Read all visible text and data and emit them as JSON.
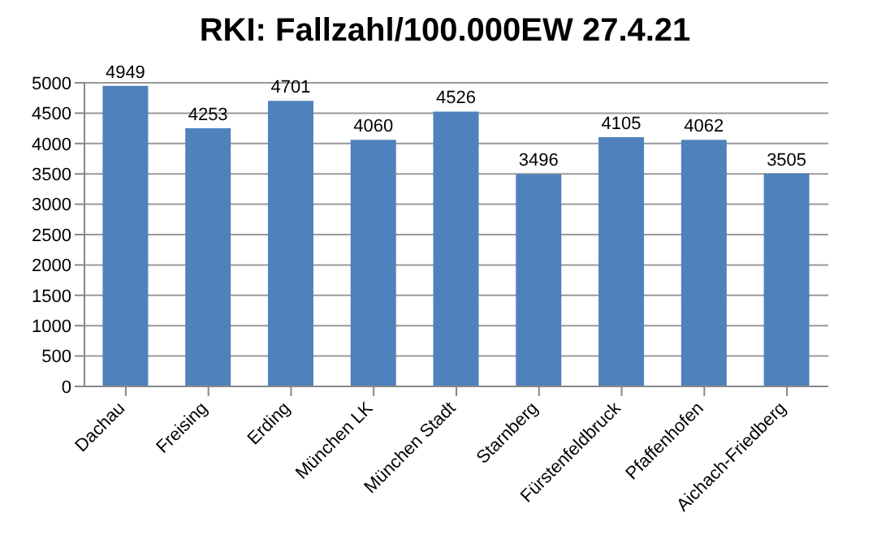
{
  "chart_data": {
    "type": "bar",
    "title": "RKI: Fallzahl/100.000EW 27.4.21",
    "categories": [
      "Dachau",
      "Freising",
      "Erding",
      "München LK",
      "München Stadt",
      "Starnberg",
      "Fürstenfeldbruck",
      "Pfaffenhofen",
      "Aichach-Friedberg"
    ],
    "values": [
      4949,
      4253,
      4701,
      4060,
      4526,
      3496,
      4105,
      4062,
      3505
    ],
    "color": "#4f81bd",
    "ylim": [
      0,
      5000
    ],
    "yticks": [
      0,
      500,
      1000,
      1500,
      2000,
      2500,
      3000,
      3500,
      4000,
      4500,
      5000
    ],
    "grid": "y",
    "data_labels": true
  }
}
